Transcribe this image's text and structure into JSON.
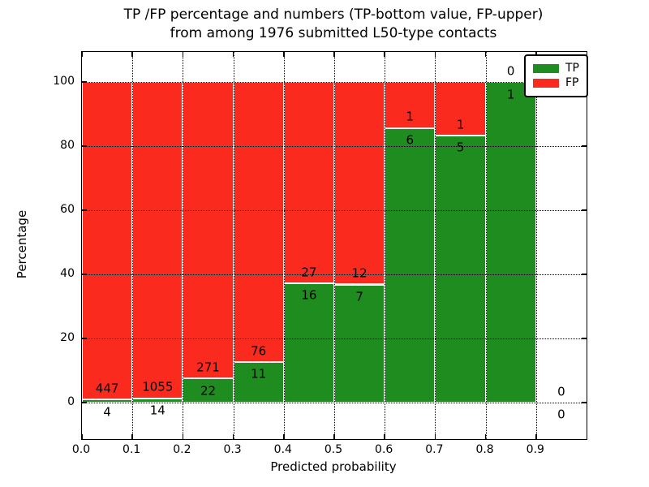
{
  "title": {
    "line1": "TP /FP percentage and numbers (TP-bottom value, FP-upper)",
    "line2": "from among 1976 submitted L50-type contacts"
  },
  "chart_data": {
    "type": "bar",
    "stacked": true,
    "title": "TP /FP percentage and numbers (TP-bottom value, FP-upper) from among 1976 submitted L50-type contacts",
    "xlabel": "Predicted probability",
    "ylabel": "Percentage",
    "total_contacts": 1976,
    "xlim": [
      0.0,
      1.0
    ],
    "ylim": [
      -11.4,
      109.4
    ],
    "grid": "dotted, both axes, drawn over bars",
    "x_tick_labels": [
      "0.0",
      "0.1",
      "0.2",
      "0.3",
      "0.4",
      "0.5",
      "0.6",
      "0.7",
      "0.8",
      "0.9"
    ],
    "y_tick_values": [
      0,
      20,
      40,
      60,
      80,
      100
    ],
    "legend": {
      "position": "upper right",
      "entries": [
        {
          "label": "TP",
          "color": "#1e8c1e"
        },
        {
          "label": "FP",
          "color": "#fa2b1e"
        }
      ]
    },
    "bins": [
      {
        "range": [
          0.0,
          0.1
        ],
        "tp": 4,
        "fp": 447,
        "tp_pct": 0.89,
        "fp_pct": 99.11
      },
      {
        "range": [
          0.1,
          0.2
        ],
        "tp": 14,
        "fp": 1055,
        "tp_pct": 1.31,
        "fp_pct": 98.69
      },
      {
        "range": [
          0.2,
          0.3
        ],
        "tp": 22,
        "fp": 271,
        "tp_pct": 7.51,
        "fp_pct": 92.49
      },
      {
        "range": [
          0.3,
          0.4
        ],
        "tp": 11,
        "fp": 76,
        "tp_pct": 12.64,
        "fp_pct": 87.36
      },
      {
        "range": [
          0.4,
          0.5
        ],
        "tp": 16,
        "fp": 27,
        "tp_pct": 37.21,
        "fp_pct": 62.79
      },
      {
        "range": [
          0.5,
          0.6
        ],
        "tp": 7,
        "fp": 12,
        "tp_pct": 36.84,
        "fp_pct": 63.16
      },
      {
        "range": [
          0.6,
          0.7
        ],
        "tp": 6,
        "fp": 1,
        "tp_pct": 85.71,
        "fp_pct": 14.29
      },
      {
        "range": [
          0.7,
          0.8
        ],
        "tp": 5,
        "fp": 1,
        "tp_pct": 83.33,
        "fp_pct": 16.67
      },
      {
        "range": [
          0.8,
          0.9
        ],
        "tp": 1,
        "fp": 0,
        "tp_pct": 100.0,
        "fp_pct": 0.0
      },
      {
        "range": [
          0.9,
          1.0
        ],
        "tp": 0,
        "fp": 0,
        "tp_pct": null,
        "fp_pct": null
      }
    ]
  }
}
